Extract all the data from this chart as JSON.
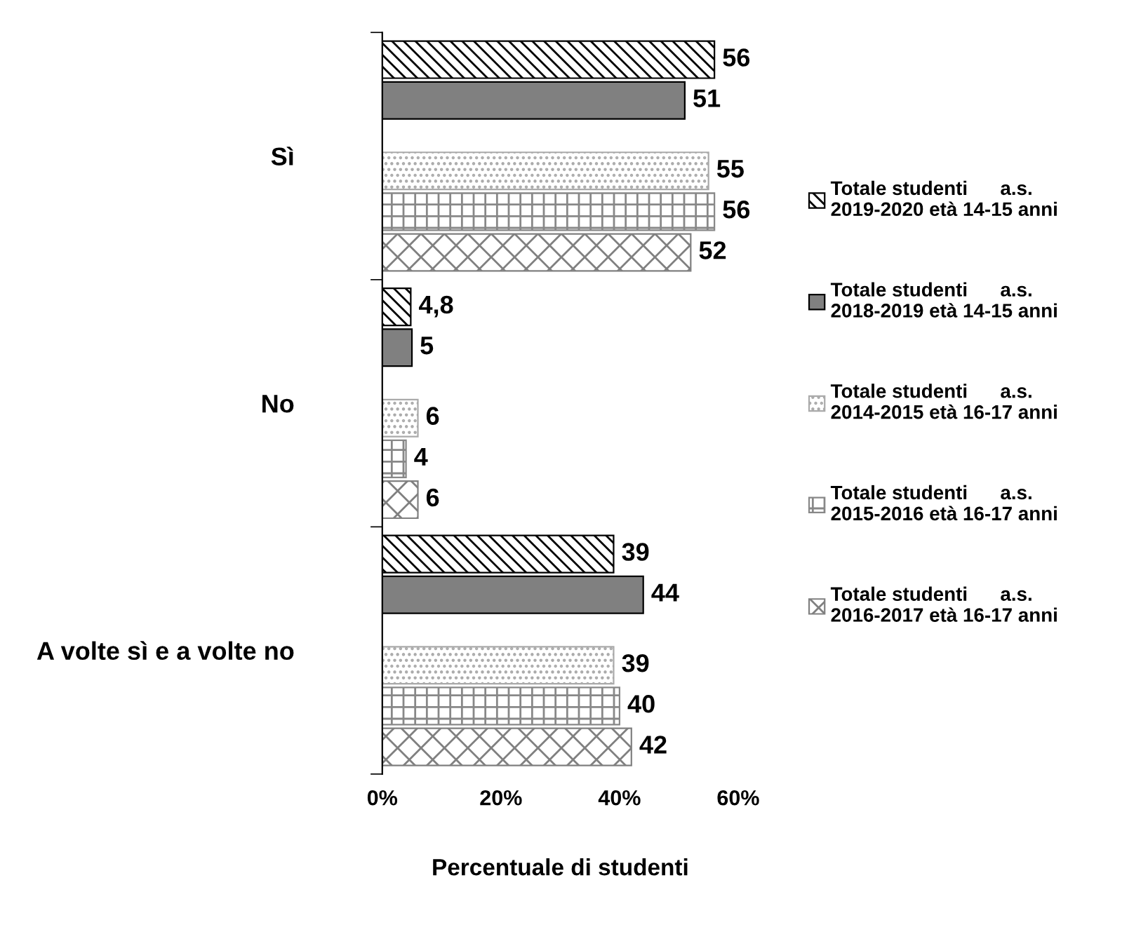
{
  "chart_data": {
    "type": "bar",
    "orientation": "horizontal",
    "xlabel": "Percentuale di studenti",
    "categories": [
      "Sì",
      "No",
      "A volte sì e a volte no"
    ],
    "xlim": [
      0,
      60
    ],
    "xticks": [
      {
        "value": 0,
        "label": "0%"
      },
      {
        "value": 20,
        "label": "20%"
      },
      {
        "value": 40,
        "label": "40%"
      },
      {
        "value": 60,
        "label": "60%"
      }
    ],
    "grid": false,
    "legend": "right",
    "series": [
      {
        "name": "Totale studenti      a.s.\n2019-2020 età 14-15 anni",
        "color": "#000000",
        "values": [
          56,
          4.8,
          39
        ],
        "value_labels": [
          "56",
          "4,8",
          "39"
        ]
      },
      {
        "name": "Totale studenti      a.s.\n2018-2019 età 14-15 anni",
        "color": "#808080",
        "values": [
          51,
          5,
          44
        ],
        "value_labels": [
          "51",
          "5",
          "44"
        ]
      },
      {
        "name": "Totale studenti      a.s.\n2014-2015 età 16-17 anni",
        "color": "#aaaaaa",
        "values": [
          55,
          6,
          39
        ],
        "value_labels": [
          "55",
          "6",
          "39"
        ]
      },
      {
        "name": "Totale studenti      a.s.\n2015-2016 età 16-17 anni",
        "color": "#888888",
        "values": [
          56,
          4,
          40
        ],
        "value_labels": [
          "56",
          "4",
          "40"
        ]
      },
      {
        "name": "Totale studenti      a.s.\n2016-2017 età 16-17 anni",
        "color": "#808080",
        "values": [
          52,
          6,
          42
        ],
        "value_labels": [
          "52",
          "6",
          "42"
        ]
      }
    ]
  }
}
